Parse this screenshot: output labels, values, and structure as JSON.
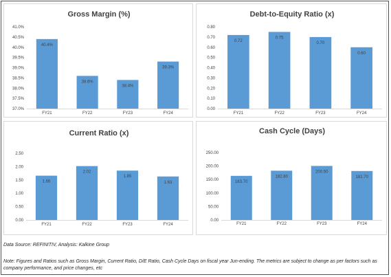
{
  "chart_data": [
    {
      "type": "bar",
      "title": "Gross Margin (%)",
      "categories": [
        "FY21",
        "FY22",
        "FY23",
        "FY24"
      ],
      "values": [
        40.4,
        38.6,
        38.4,
        39.3
      ],
      "data_labels": [
        "40.4%",
        "38.6%",
        "38.4%",
        "39.3%"
      ],
      "ylim": [
        37.0,
        41.0
      ],
      "yticks": [
        "37.0%",
        "37.5%",
        "38.0%",
        "38.5%",
        "39.0%",
        "39.5%",
        "40.0%",
        "40.5%",
        "41.0%"
      ],
      "grid": false,
      "color": "#5b9bd5"
    },
    {
      "type": "bar",
      "title": "Debt-to-Equity Ratio (x)",
      "categories": [
        "FY21",
        "FY22",
        "FY23",
        "FY24"
      ],
      "values": [
        0.72,
        0.75,
        0.7,
        0.6
      ],
      "data_labels": [
        "0.72",
        "0.75",
        "0.70",
        "0.60"
      ],
      "ylim": [
        0.0,
        0.8
      ],
      "yticks": [
        "0.00",
        "0.10",
        "0.20",
        "0.30",
        "0.40",
        "0.50",
        "0.60",
        "0.70",
        "0.80"
      ],
      "grid": false,
      "color": "#5b9bd5"
    },
    {
      "type": "bar",
      "title": "Current Ratio (x)",
      "categories": [
        "FY21",
        "FY22",
        "FY23",
        "FY24"
      ],
      "values": [
        1.66,
        2.02,
        1.85,
        1.63
      ],
      "data_labels": [
        "1.66",
        "2.02",
        "1.85",
        "1.63"
      ],
      "ylim": [
        0.0,
        2.5
      ],
      "yticks": [
        "0.00",
        "0.50",
        "1.00",
        "1.50",
        "2.00",
        "2.50"
      ],
      "grid": false,
      "color": "#5b9bd5"
    },
    {
      "type": "bar",
      "title": "Cash Cycle (Days)",
      "categories": [
        "FY21",
        "FY22",
        "FY23",
        "FY24"
      ],
      "values": [
        163.7,
        182.8,
        200.5,
        181.7
      ],
      "data_labels": [
        "163.70",
        "182.80",
        "200.50",
        "181.70"
      ],
      "ylim": [
        0.0,
        250.0
      ],
      "yticks": [
        "0.00",
        "50.00",
        "100.00",
        "150.00",
        "200.00",
        "250.00"
      ],
      "grid": false,
      "color": "#5b9bd5"
    }
  ],
  "source_text": "Data Source: REFINITIV, Analysis: Kalkine Group",
  "note_text": "Note: Figures and Ratios such as Gross Margin, Current Ratio, D/E Ratio, Cash Cycle Days on fiscal year Jun-ending. The metrics are subject to change as per factors such as company performance, and price changes, etc"
}
